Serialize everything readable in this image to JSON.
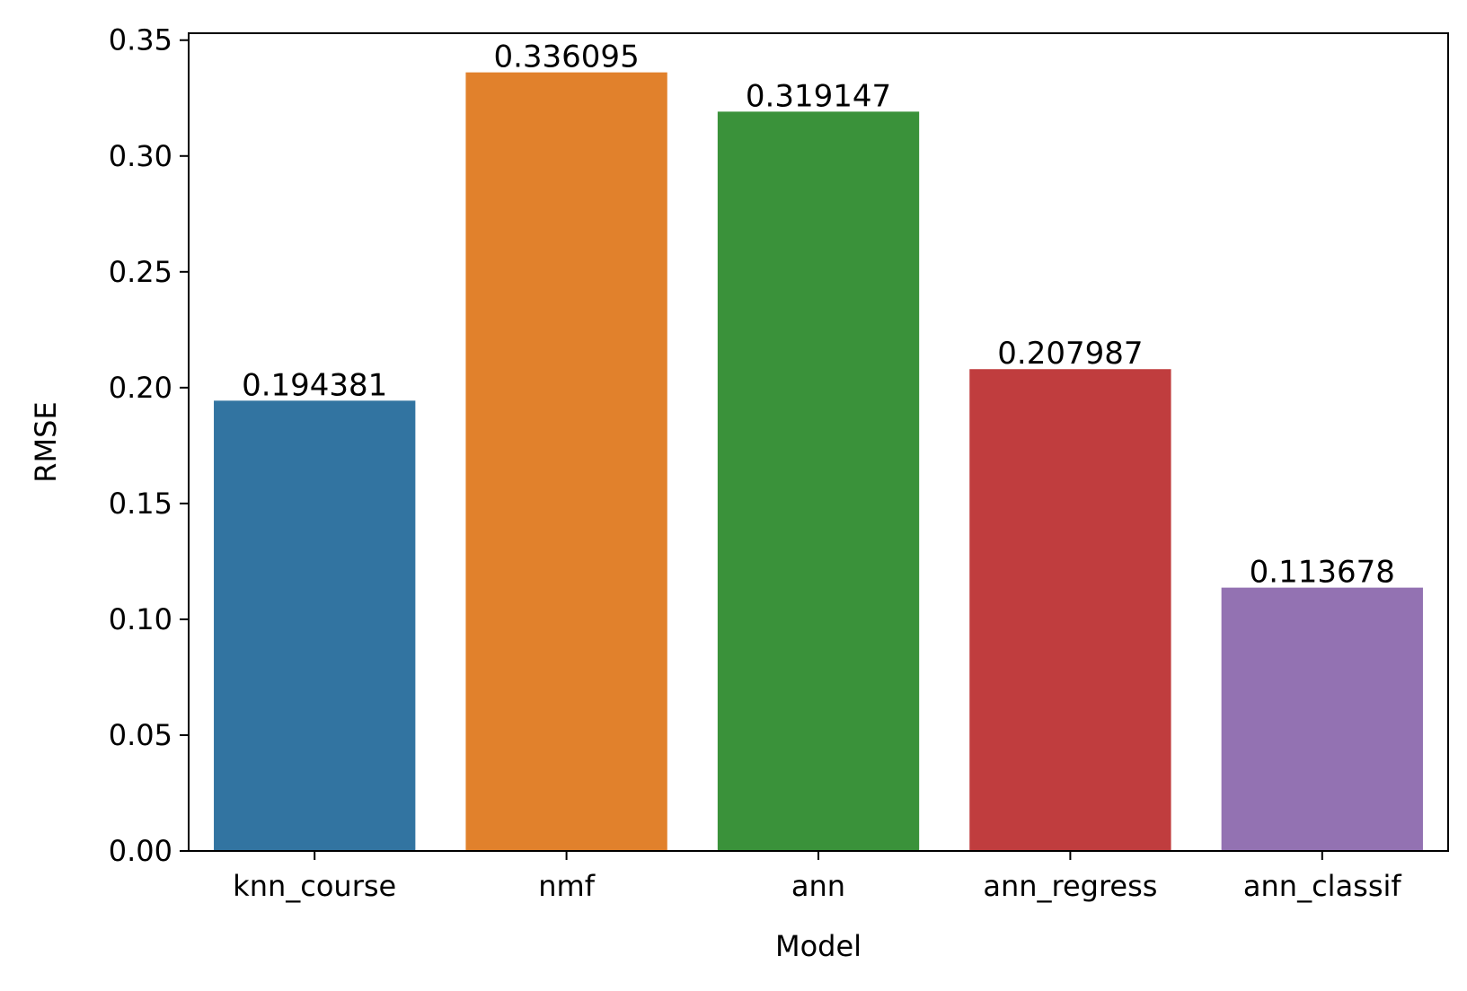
{
  "chart_data": {
    "type": "bar",
    "categories": [
      "knn_course",
      "nmf",
      "ann",
      "ann_regress",
      "ann_classif"
    ],
    "values": [
      0.194381,
      0.336095,
      0.319147,
      0.207987,
      0.113678
    ],
    "value_labels": [
      "0.194381",
      "0.336095",
      "0.319147",
      "0.207987",
      "0.113678"
    ],
    "colors": [
      "#3274a1",
      "#e1812c",
      "#3a923a",
      "#c03d3e",
      "#9372b2"
    ],
    "xlabel": "Model",
    "ylabel": "RMSE",
    "ylim": [
      0,
      0.353
    ],
    "yticks": [
      0.0,
      0.05,
      0.1,
      0.15,
      0.2,
      0.25,
      0.3,
      0.35
    ],
    "ytick_labels": [
      "0.00",
      "0.05",
      "0.10",
      "0.15",
      "0.20",
      "0.25",
      "0.30",
      "0.35"
    ],
    "grid": false,
    "legend": "none"
  }
}
